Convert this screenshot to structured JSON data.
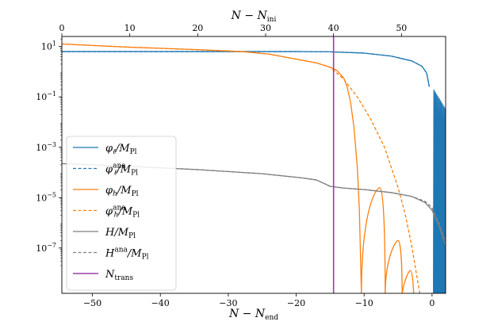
{
  "chart_data": {
    "type": "line",
    "title": "",
    "xlabel": "N − N_end",
    "xlabel_main": "N − N",
    "xlabel_sub": "end",
    "top_xlabel": "N − N_ini",
    "top_xlabel_main": "N − N",
    "top_xlabel_sub": "ini",
    "ylabel": "",
    "yscale": "log",
    "xlim": [
      -54.5,
      2
    ],
    "ylim_log10": [
      -8.8,
      1.4
    ],
    "top_xlim": [
      0,
      56.5
    ],
    "x_ticks": [
      -50,
      -40,
      -30,
      -20,
      -10,
      0
    ],
    "x_tick_labels": [
      "−50",
      "−40",
      "−30",
      "−20",
      "−10",
      "0"
    ],
    "top_ticks": [
      0,
      10,
      20,
      30,
      40,
      50
    ],
    "top_tick_labels": [
      "0",
      "10",
      "20",
      "30",
      "40",
      "50"
    ],
    "y_ticks_log10": [
      1,
      -1,
      -3,
      -5,
      -7
    ],
    "y_tick_labels": [
      {
        "base": "10",
        "exp": "1"
      },
      {
        "base": "10",
        "exp": "−1"
      },
      {
        "base": "10",
        "exp": "−3"
      },
      {
        "base": "10",
        "exp": "−5"
      },
      {
        "base": "10",
        "exp": "−7"
      }
    ],
    "grid": false,
    "legend_position": "lower-left",
    "colors": {
      "blue": "#1f77b4",
      "orange": "#ff7f0e",
      "gray": "#7f7f7f",
      "purple": "#9b3ea8"
    },
    "series": [
      {
        "key": "phi_l",
        "legend": {
          "main": "φ",
          "sub": "ℓ",
          "sup": "",
          "tail": "/M",
          "tail_sub": "Pl"
        },
        "color": "blue",
        "dash": "solid",
        "points": [
          [
            -54.5,
            0.8
          ],
          [
            -40,
            0.8
          ],
          [
            -30,
            0.8
          ],
          [
            -20,
            0.8
          ],
          [
            -15,
            0.79
          ],
          [
            -10,
            0.74
          ],
          [
            -6,
            0.62
          ],
          [
            -3,
            0.43
          ],
          [
            -1.5,
            0.22
          ],
          [
            -0.8,
            -0.05
          ],
          [
            -0.4,
            -0.6
          ]
        ],
        "oscillation": {
          "start": 0.2,
          "end": 2,
          "count": 14,
          "top_start": -0.7,
          "top_end": -1.5
        }
      },
      {
        "key": "phi_l_ana",
        "legend": {
          "main": "φ",
          "sub": "ℓ",
          "sup": "ana",
          "tail": "/M",
          "tail_sub": "Pl"
        },
        "color": "blue",
        "dash": "dashed",
        "points": [
          [
            -54.5,
            0.8
          ],
          [
            -40,
            0.8
          ],
          [
            -30,
            0.8
          ],
          [
            -20,
            0.8
          ],
          [
            -15,
            0.79
          ],
          [
            -10,
            0.74
          ],
          [
            -6,
            0.62
          ],
          [
            -3,
            0.43
          ],
          [
            -1.5,
            0.22
          ],
          [
            -0.8,
            -0.05
          ],
          [
            -0.4,
            -0.6
          ]
        ]
      },
      {
        "key": "phi_h",
        "legend": {
          "main": "φ",
          "sub": "h",
          "sup": "",
          "tail": "/M",
          "tail_sub": "Pl"
        },
        "color": "orange",
        "dash": "solid",
        "points": [
          [
            -54.5,
            1.1
          ],
          [
            -45,
            0.98
          ],
          [
            -35,
            0.88
          ],
          [
            -28,
            0.8
          ],
          [
            -24,
            0.7
          ],
          [
            -20,
            0.5
          ],
          [
            -17,
            0.35
          ],
          [
            -15,
            0.18
          ],
          [
            -14,
            0.05
          ],
          [
            -13,
            -0.25
          ],
          [
            -12.5,
            -0.6
          ],
          [
            -12,
            -1.2
          ],
          [
            -11.5,
            -2.2
          ],
          [
            -11,
            -3.8
          ],
          [
            -10.7,
            -5.5
          ],
          [
            -10.4,
            -8.8
          ]
        ],
        "humps": [
          {
            "x0": -10.4,
            "xp": -7.7,
            "x1": -6.9,
            "peak": -4.6
          },
          {
            "x0": -6.9,
            "xp": -5.0,
            "x1": -4.4,
            "peak": -6.7
          },
          {
            "x0": -4.4,
            "xp": -3.2,
            "x1": -2.7,
            "peak": -7.9
          }
        ]
      },
      {
        "key": "phi_h_ana",
        "legend": {
          "main": "φ",
          "sub": "h",
          "sup": "ana",
          "tail": "/M",
          "tail_sub": "Pl"
        },
        "color": "orange",
        "dash": "dashed",
        "points": [
          [
            -54.5,
            1.1
          ],
          [
            -45,
            0.98
          ],
          [
            -35,
            0.88
          ],
          [
            -28,
            0.8
          ],
          [
            -24,
            0.7
          ],
          [
            -20,
            0.5
          ],
          [
            -17,
            0.35
          ],
          [
            -15,
            0.18
          ],
          [
            -13,
            -0.3
          ],
          [
            -11,
            -1.0
          ],
          [
            -9,
            -1.9
          ],
          [
            -7,
            -3.0
          ],
          [
            -5,
            -4.6
          ],
          [
            -4,
            -5.6
          ],
          [
            -3,
            -6.9
          ],
          [
            -2,
            -8.5
          ],
          [
            -1.8,
            -8.8
          ]
        ]
      },
      {
        "key": "H",
        "legend": {
          "main": "H",
          "sub": "",
          "sup": "",
          "tail": "/M",
          "tail_sub": "Pl"
        },
        "color": "gray",
        "dash": "solid",
        "points": [
          [
            -54.5,
            -3.65
          ],
          [
            -45,
            -3.75
          ],
          [
            -35,
            -3.88
          ],
          [
            -25,
            -4.05
          ],
          [
            -19,
            -4.22
          ],
          [
            -17,
            -4.3
          ],
          [
            -15,
            -4.55
          ],
          [
            -13,
            -4.62
          ],
          [
            -10,
            -4.68
          ],
          [
            -6,
            -4.8
          ],
          [
            -3,
            -4.95
          ],
          [
            -1,
            -5.2
          ],
          [
            0,
            -5.5
          ],
          [
            1,
            -6.1
          ],
          [
            2,
            -6.9
          ]
        ]
      },
      {
        "key": "H_ana",
        "legend": {
          "main": "H",
          "sub": "",
          "sup": "ana",
          "tail": "/M",
          "tail_sub": "Pl"
        },
        "color": "gray",
        "dash": "dashed",
        "points": [
          [
            -54.5,
            -3.65
          ],
          [
            -45,
            -3.75
          ],
          [
            -35,
            -3.88
          ],
          [
            -25,
            -4.05
          ],
          [
            -19,
            -4.22
          ],
          [
            -17,
            -4.3
          ],
          [
            -15,
            -4.55
          ],
          [
            -13,
            -4.62
          ],
          [
            -10,
            -4.68
          ],
          [
            -6,
            -4.8
          ],
          [
            -3,
            -4.95
          ],
          [
            -1,
            -5.15
          ],
          [
            0,
            -5.4
          ],
          [
            1,
            -6.0
          ],
          [
            2,
            -6.8
          ]
        ]
      },
      {
        "key": "N_trans",
        "legend": {
          "main": "N",
          "sub": "trans",
          "sup": "",
          "tail": "",
          "tail_sub": ""
        },
        "color": "purple",
        "dash": "solid",
        "vline": -14.5
      }
    ]
  }
}
